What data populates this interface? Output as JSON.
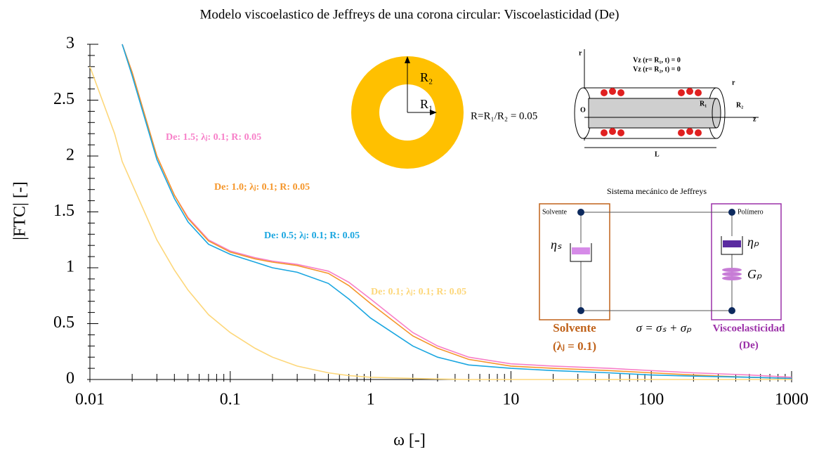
{
  "chart_data": {
    "type": "line",
    "title": "Modelo viscoelastico de Jeffreys de una corona circular: Viscoelasticidad (De)",
    "x_label": "ω [-]",
    "y_label": "|FTC| [-]",
    "log_x": true,
    "xlim": [
      0.01,
      1000
    ],
    "ylim": [
      0,
      3
    ],
    "xticks": [
      0.01,
      0.1,
      1,
      10,
      100,
      1000
    ],
    "xminorticks": [
      0.02,
      0.03,
      0.04,
      0.05,
      0.06,
      0.07,
      0.08,
      0.09,
      0.2,
      0.3,
      0.4,
      0.5,
      0.6,
      0.7,
      0.8,
      0.9,
      2,
      3,
      4,
      5,
      6,
      7,
      8,
      9,
      20,
      30,
      40,
      50,
      60,
      70,
      80,
      90,
      200,
      300,
      400,
      500,
      600,
      700,
      800,
      900
    ],
    "yticks": [
      0,
      0.5,
      1,
      1.5,
      2,
      2.5,
      3
    ],
    "yminorticks": [
      0.1,
      0.2,
      0.3,
      0.4,
      0.6,
      0.7,
      0.8,
      0.9,
      1.1,
      1.2,
      1.3,
      1.4,
      1.6,
      1.7,
      1.8,
      1.9,
      2.1,
      2.2,
      2.3,
      2.4,
      2.6,
      2.7,
      2.8,
      2.9
    ],
    "x": [
      0.01,
      0.015,
      0.017,
      0.02,
      0.03,
      0.04,
      0.05,
      0.07,
      0.1,
      0.15,
      0.2,
      0.3,
      0.5,
      0.7,
      1,
      2,
      3,
      5,
      10,
      20,
      50,
      100,
      200,
      500,
      1000
    ],
    "series": [
      {
        "name": "De: 1.5; λⱼ: 0.1; R: 0.05",
        "color": "#f77fc8",
        "values": [
          null,
          null,
          3,
          2.75,
          2.0,
          1.65,
          1.45,
          1.25,
          1.15,
          1.09,
          1.06,
          1.03,
          0.97,
          0.87,
          0.72,
          0.42,
          0.3,
          0.2,
          0.14,
          0.12,
          0.1,
          0.08,
          0.06,
          0.04,
          0.02
        ]
      },
      {
        "name": "De: 1.0; λⱼ: 0.1; R: 0.05",
        "color": "#f5962a",
        "values": [
          null,
          null,
          3,
          2.75,
          2.0,
          1.65,
          1.44,
          1.24,
          1.14,
          1.08,
          1.05,
          1.02,
          0.95,
          0.84,
          0.68,
          0.39,
          0.28,
          0.18,
          0.12,
          0.1,
          0.08,
          0.06,
          0.04,
          0.02,
          0.01
        ]
      },
      {
        "name": "De: 0.5; λⱼ: 0.1; R: 0.05",
        "color": "#1aa6e0",
        "values": [
          null,
          null,
          3,
          2.72,
          1.97,
          1.62,
          1.41,
          1.21,
          1.12,
          1.05,
          1.0,
          0.96,
          0.86,
          0.72,
          0.55,
          0.3,
          0.2,
          0.13,
          0.1,
          0.08,
          0.06,
          0.04,
          0.03,
          0.02,
          0.01
        ]
      },
      {
        "name": "De: 0.1; λⱼ: 0.1; R: 0.05",
        "color": "#fdd77a",
        "values": [
          2.8,
          2.2,
          1.95,
          1.75,
          1.25,
          0.98,
          0.8,
          0.58,
          0.42,
          0.28,
          0.2,
          0.12,
          0.06,
          0.035,
          0.02,
          0.01,
          0.005,
          0,
          0,
          0,
          0,
          0,
          0,
          0,
          0
        ]
      }
    ],
    "annotations": {
      "ring": {
        "r2": "R₂",
        "r1": "R₁",
        "formula": "R=R₁/R₂ = 0.05"
      },
      "pipe": {
        "bc1": "Vz (r= R₁, t) = 0",
        "bc2": "Vz (r= R₂, t) = 0",
        "r_axis": "r",
        "r_axis2": "r",
        "origin": "O",
        "r1": "R₁",
        "r2": "R₂",
        "z_axis": "z",
        "length": "L"
      },
      "jeffreys": {
        "title": "Sistema mecánico de Jeffreys",
        "solvent_top": "Solvente",
        "polymer_top": "Polímero",
        "eta_s": "ηₛ",
        "eta_p": "ηₚ",
        "g_p": "Gₚ",
        "solvent": "Solvente",
        "lambda": "(λⱼ = 0.1)",
        "sigma": "σ = σₛ + σₚ",
        "visco": "Viscoelasticidad",
        "de": "(De)"
      }
    }
  }
}
